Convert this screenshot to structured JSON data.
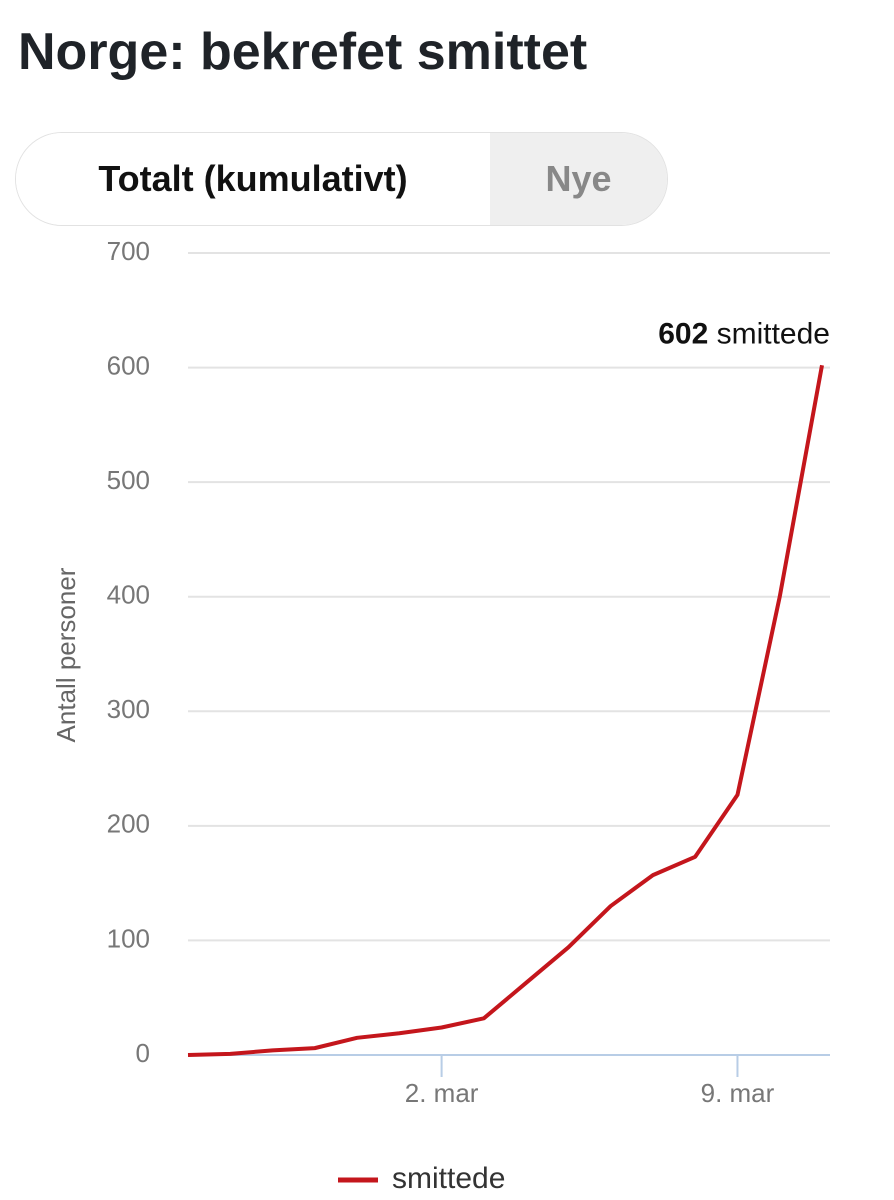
{
  "chart_data": {
    "type": "line",
    "title": "Norge: bekrefet smittet",
    "y_label": "Antall personer",
    "categories": [
      null,
      null,
      null,
      null,
      null,
      null,
      "2. mar",
      null,
      null,
      null,
      null,
      null,
      null,
      "9. mar",
      null,
      null
    ],
    "series": [
      {
        "name": "smittede",
        "color": "#c4161c",
        "values": [
          0,
          1,
          4,
          6,
          15,
          19,
          24,
          32,
          63,
          94,
          130,
          157,
          173,
          227,
          400,
          602
        ]
      }
    ],
    "ylim": [
      0,
      700
    ],
    "yticks": [
      0,
      100,
      200,
      300,
      400,
      500,
      600,
      700
    ],
    "grid": true
  },
  "tabs": [
    "Totalt (kumulativt)",
    "Nye"
  ]
}
